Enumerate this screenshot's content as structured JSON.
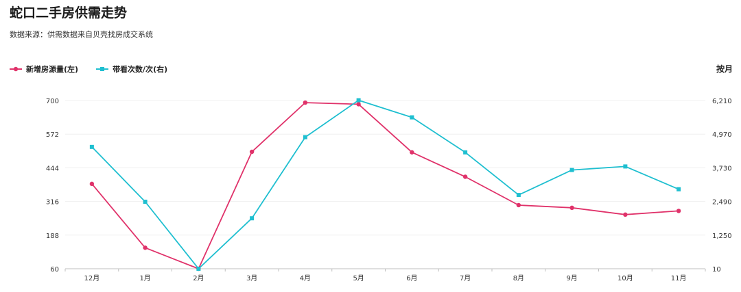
{
  "title": "蛇口二手房供需走势",
  "subtitle": "数据来源：供需数据来自贝壳找房成交系统",
  "period_label": "按月",
  "chart_data": {
    "type": "line",
    "categories": [
      "12月",
      "1月",
      "2月",
      "3月",
      "4月",
      "5月",
      "6月",
      "7月",
      "8月",
      "9月",
      "10月",
      "11月"
    ],
    "series": [
      {
        "name": "新增房源量(左)",
        "axis": "left",
        "color": "#e0326a",
        "marker": "circle",
        "values": [
          383,
          140,
          60,
          505,
          692,
          686,
          503,
          410,
          302,
          292,
          266,
          280
        ]
      },
      {
        "name": "带看次数/次(右)",
        "axis": "right",
        "color": "#1fbfd0",
        "marker": "square",
        "values": [
          4500,
          2480,
          10,
          1870,
          4860,
          6220,
          5590,
          4300,
          2730,
          3650,
          3780,
          2940
        ]
      }
    ],
    "y_left": {
      "min": 60,
      "max": 700,
      "ticks": [
        "700",
        "572",
        "444",
        "316",
        "188",
        "60"
      ]
    },
    "y_right": {
      "min": 10,
      "max": 6210,
      "ticks": [
        "6,210",
        "4,970",
        "3,730",
        "2,490",
        "1,250",
        "10"
      ]
    },
    "grid": "horizontal",
    "legend_position": "top-left"
  }
}
